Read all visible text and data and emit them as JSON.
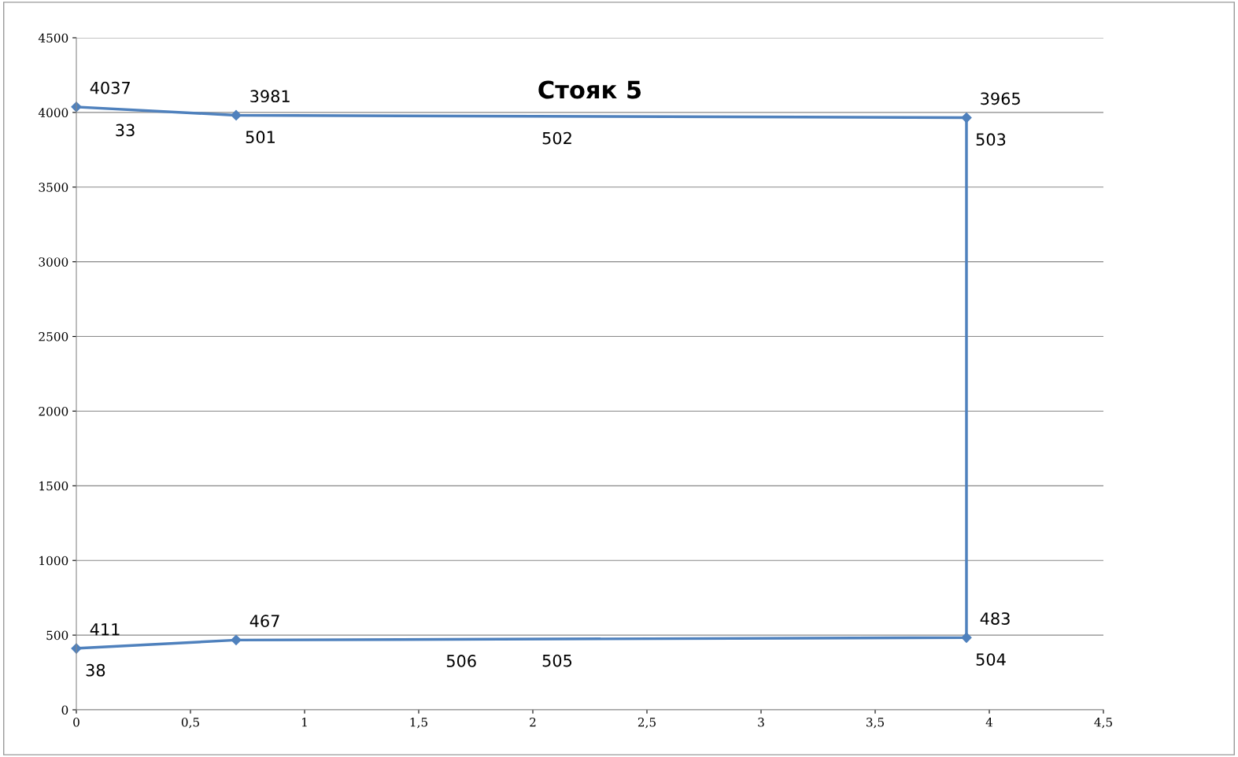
{
  "chart_data": {
    "type": "line",
    "title": "Стояк 5",
    "series": [
      {
        "color": "#4f81bd",
        "x": [
          0,
          0.7,
          3.9,
          3.9,
          0.7,
          0
        ],
        "values": [
          4037,
          3981,
          3965,
          483,
          467,
          411
        ]
      }
    ],
    "data_labels": true,
    "marker": "diamond",
    "line_style": "solid",
    "grid": "y",
    "xlim": [
      0,
      4.5
    ],
    "xticks": [
      0,
      {
        "value": 0.5,
        "label": "0,5"
      },
      1,
      {
        "value": 1.5,
        "label": "1,5"
      },
      2,
      {
        "value": 2.5,
        "label": "2,5"
      },
      3,
      {
        "value": 3.5,
        "label": "3,5"
      },
      4,
      {
        "value": 4.5,
        "label": "4,5"
      }
    ],
    "ylim": [
      0,
      4500
    ],
    "yticks": [
      0,
      500,
      1000,
      1500,
      2000,
      2500,
      3000,
      3500,
      4000,
      4500
    ],
    "annotations": [
      {
        "text": "33",
        "x": 0.13,
        "y": 4027
      },
      {
        "text": "501",
        "x": 0.7,
        "y": 3981
      },
      {
        "text": "502",
        "x": 2.0,
        "y": 3974
      },
      {
        "text": "503",
        "x": 3.9,
        "y": 3965
      },
      {
        "text": "504",
        "x": 3.9,
        "y": 483
      },
      {
        "text": "505",
        "x": 2.0,
        "y": 475
      },
      {
        "text": "506",
        "x": 1.58,
        "y": 473
      },
      {
        "text": "38",
        "x": 0,
        "y": 411
      }
    ]
  }
}
